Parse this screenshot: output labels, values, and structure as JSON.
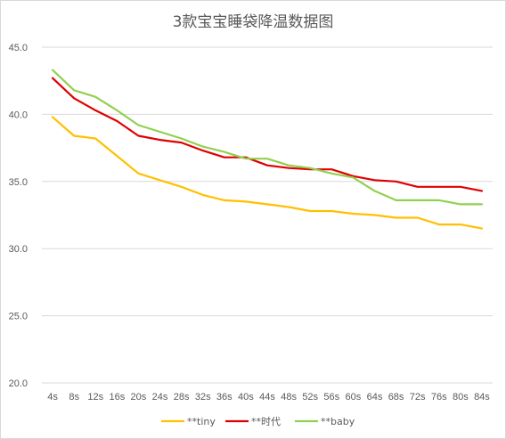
{
  "chart_data": {
    "type": "line",
    "title": "3款宝宝睡袋降温数据图",
    "xlabel": "",
    "ylabel": "",
    "ylim": [
      20,
      45
    ],
    "yticks": [
      "45.0",
      "40.0",
      "35.0",
      "30.0",
      "25.0",
      "20.0"
    ],
    "categories": [
      "4s",
      "8s",
      "12s",
      "16s",
      "20s",
      "24s",
      "28s",
      "32s",
      "36s",
      "40s",
      "44s",
      "48s",
      "52s",
      "56s",
      "60s",
      "64s",
      "68s",
      "72s",
      "76s",
      "80s",
      "84s"
    ],
    "grid": true,
    "legend_position": "bottom",
    "series": [
      {
        "name": "**tiny",
        "color": "#FFC000",
        "values": [
          39.8,
          38.4,
          38.2,
          36.9,
          35.6,
          35.1,
          34.6,
          34.0,
          33.6,
          33.5,
          33.3,
          33.1,
          32.8,
          32.8,
          32.6,
          32.5,
          32.3,
          32.3,
          31.8,
          31.8,
          31.5
        ]
      },
      {
        "name": "**时代",
        "color": "#E00000",
        "values": [
          42.7,
          41.2,
          40.3,
          39.5,
          38.4,
          38.1,
          37.9,
          37.3,
          36.8,
          36.8,
          36.2,
          36.0,
          35.9,
          35.9,
          35.4,
          35.1,
          35.0,
          34.6,
          34.6,
          34.6,
          34.3
        ]
      },
      {
        "name": "**baby",
        "color": "#92D050",
        "values": [
          43.3,
          41.8,
          41.3,
          40.3,
          39.2,
          38.7,
          38.2,
          37.6,
          37.2,
          36.7,
          36.7,
          36.2,
          36.0,
          35.6,
          35.3,
          34.3,
          33.6,
          33.6,
          33.6,
          33.3,
          33.3
        ]
      }
    ]
  }
}
